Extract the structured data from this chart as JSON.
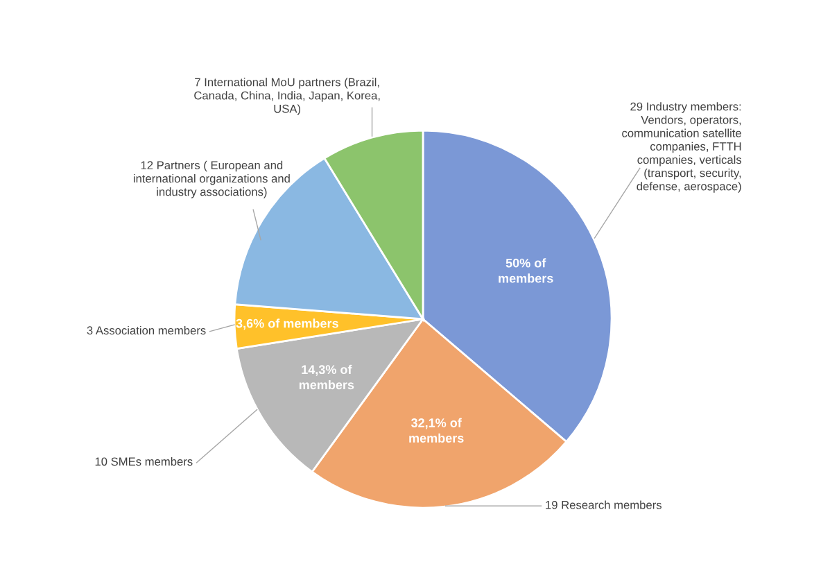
{
  "chart_data": {
    "type": "pie",
    "categories": [
      "29 Industry members:\nVendors, operators,\ncommunication satellite\ncompanies, FTTH\ncompanies, verticals\n(transport, security,\ndefense, aerospace)",
      "19 Research members",
      "10 SMEs members",
      "3 Association members",
      "12 Partners ( European and\ninternational organizations and\nindustry associations)",
      "7 International MoU partners (Brazil,\nCanada, China, India, Japan, Korea,\nUSA)"
    ],
    "values": [
      29,
      19,
      10,
      3,
      12,
      7
    ],
    "colors": [
      "#7b98d6",
      "#f0a46c",
      "#b8b8b8",
      "#ffc12a",
      "#8ab8e2",
      "#8cc46c"
    ],
    "annotations": [
      "50% of\nmembers",
      "32,1% of\nmembers",
      "14,3% of\nmembers",
      "3,6% of members"
    ]
  }
}
